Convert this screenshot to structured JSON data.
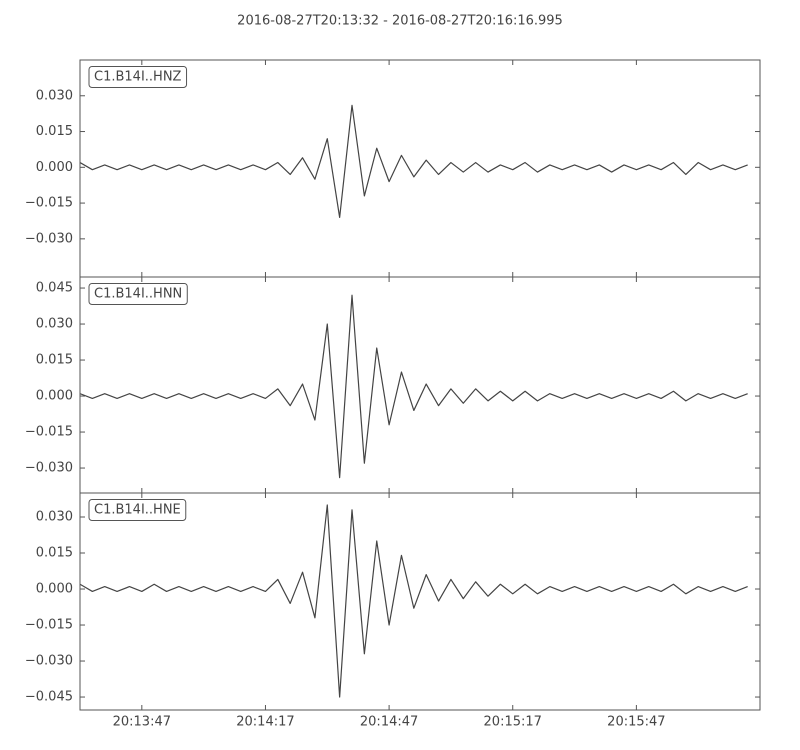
{
  "chart_data": [
    {
      "type": "line",
      "title": "2016-08-27T20:13:32  -  2016-08-27T20:16:16.995",
      "label": "C1.B14I..HNZ",
      "color": "#444444",
      "x": [
        72812,
        72815,
        72818,
        72821,
        72824,
        72827,
        72830,
        72833,
        72836,
        72839,
        72842,
        72845,
        72848,
        72851,
        72854,
        72857,
        72860,
        72863,
        72866,
        72869,
        72872,
        72875,
        72878,
        72881,
        72884,
        72887,
        72890,
        72893,
        72896,
        72899,
        72902,
        72905,
        72908,
        72911,
        72914,
        72917,
        72920,
        72923,
        72926,
        72929,
        72932,
        72935,
        72938,
        72941,
        72944,
        72947,
        72950,
        72953,
        72956,
        72959,
        72962,
        72965,
        72968,
        72971,
        72974
      ],
      "values": [
        0.002,
        -0.001,
        0.001,
        -0.001,
        0.001,
        -0.001,
        0.001,
        -0.001,
        0.001,
        -0.001,
        0.001,
        -0.001,
        0.001,
        -0.001,
        0.001,
        -0.001,
        0.002,
        -0.003,
        0.004,
        -0.005,
        0.012,
        -0.021,
        0.026,
        -0.012,
        0.008,
        -0.006,
        0.005,
        -0.004,
        0.003,
        -0.003,
        0.002,
        -0.002,
        0.002,
        -0.002,
        0.001,
        -0.001,
        0.002,
        -0.002,
        0.001,
        -0.001,
        0.001,
        -0.001,
        0.001,
        -0.002,
        0.001,
        -0.001,
        0.001,
        -0.001,
        0.002,
        -0.003,
        0.002,
        -0.001,
        0.001,
        -0.001,
        0.001
      ],
      "xlim": [
        72812,
        72976.995
      ],
      "ylim": [
        -0.046,
        0.045
      ],
      "yticks": [
        {
          "value": -0.03,
          "label": "−0.030"
        },
        {
          "value": -0.015,
          "label": "−0.015"
        },
        {
          "value": 0,
          "label": "0.000"
        },
        {
          "value": 0.015,
          "label": "0.015"
        },
        {
          "value": 0.03,
          "label": "0.030"
        }
      ],
      "xticks": [
        72827,
        72857,
        72887,
        72917,
        72947
      ]
    },
    {
      "type": "line",
      "label": "C1.B14I..HNN",
      "color": "#444444",
      "x": [
        72812,
        72815,
        72818,
        72821,
        72824,
        72827,
        72830,
        72833,
        72836,
        72839,
        72842,
        72845,
        72848,
        72851,
        72854,
        72857,
        72860,
        72863,
        72866,
        72869,
        72872,
        72875,
        72878,
        72881,
        72884,
        72887,
        72890,
        72893,
        72896,
        72899,
        72902,
        72905,
        72908,
        72911,
        72914,
        72917,
        72920,
        72923,
        72926,
        72929,
        72932,
        72935,
        72938,
        72941,
        72944,
        72947,
        72950,
        72953,
        72956,
        72959,
        72962,
        72965,
        72968,
        72971,
        72974
      ],
      "values": [
        0.001,
        -0.001,
        0.001,
        -0.001,
        0.001,
        -0.001,
        0.001,
        -0.001,
        0.001,
        -0.001,
        0.001,
        -0.001,
        0.001,
        -0.001,
        0.001,
        -0.001,
        0.003,
        -0.004,
        0.005,
        -0.01,
        0.03,
        -0.034,
        0.042,
        -0.028,
        0.02,
        -0.012,
        0.01,
        -0.006,
        0.005,
        -0.004,
        0.003,
        -0.003,
        0.003,
        -0.002,
        0.002,
        -0.002,
        0.002,
        -0.002,
        0.001,
        -0.001,
        0.001,
        -0.001,
        0.001,
        -0.001,
        0.001,
        -0.001,
        0.001,
        -0.001,
        0.002,
        -0.002,
        0.001,
        -0.001,
        0.001,
        -0.001,
        0.001
      ],
      "xlim": [
        72812,
        72976.995
      ],
      "ylim": [
        -0.0404,
        0.0496
      ],
      "yticks": [
        {
          "value": -0.03,
          "label": "−0.030"
        },
        {
          "value": -0.015,
          "label": "−0.015"
        },
        {
          "value": 0,
          "label": "0.000"
        },
        {
          "value": 0.015,
          "label": "0.015"
        },
        {
          "value": 0.03,
          "label": "0.030"
        },
        {
          "value": 0.045,
          "label": "0.045"
        }
      ],
      "xticks": [
        72827,
        72857,
        72887,
        72917,
        72947
      ]
    },
    {
      "type": "line",
      "label": "C1.B14I..HNE",
      "color": "#444444",
      "x": [
        72812,
        72815,
        72818,
        72821,
        72824,
        72827,
        72830,
        72833,
        72836,
        72839,
        72842,
        72845,
        72848,
        72851,
        72854,
        72857,
        72860,
        72863,
        72866,
        72869,
        72872,
        72875,
        72878,
        72881,
        72884,
        72887,
        72890,
        72893,
        72896,
        72899,
        72902,
        72905,
        72908,
        72911,
        72914,
        72917,
        72920,
        72923,
        72926,
        72929,
        72932,
        72935,
        72938,
        72941,
        72944,
        72947,
        72950,
        72953,
        72956,
        72959,
        72962,
        72965,
        72968,
        72971,
        72974
      ],
      "values": [
        0.002,
        -0.001,
        0.001,
        -0.001,
        0.001,
        -0.001,
        0.002,
        -0.001,
        0.001,
        -0.001,
        0.001,
        -0.001,
        0.001,
        -0.001,
        0.001,
        -0.001,
        0.004,
        -0.006,
        0.007,
        -0.012,
        0.035,
        -0.045,
        0.033,
        -0.027,
        0.02,
        -0.015,
        0.014,
        -0.008,
        0.006,
        -0.005,
        0.004,
        -0.004,
        0.003,
        -0.003,
        0.002,
        -0.002,
        0.002,
        -0.002,
        0.001,
        -0.001,
        0.001,
        -0.001,
        0.001,
        -0.001,
        0.001,
        -0.001,
        0.001,
        -0.001,
        0.002,
        -0.002,
        0.001,
        -0.001,
        0.001,
        -0.001,
        0.001
      ],
      "xlim": [
        72812,
        72976.995
      ],
      "ylim": [
        -0.0504,
        0.04
      ],
      "yticks": [
        {
          "value": -0.045,
          "label": "−0.045"
        },
        {
          "value": -0.03,
          "label": "−0.030"
        },
        {
          "value": -0.015,
          "label": "−0.015"
        },
        {
          "value": 0,
          "label": "0.000"
        },
        {
          "value": 0.015,
          "label": "0.015"
        },
        {
          "value": 0.03,
          "label": "0.030"
        }
      ],
      "xticks": [
        {
          "value": 72827,
          "label": "20:13:47"
        },
        {
          "value": 72857,
          "label": "20:14:17"
        },
        {
          "value": 72887,
          "label": "20:14:47"
        },
        {
          "value": 72917,
          "label": "20:15:17"
        },
        {
          "value": 72947,
          "label": "20:15:47"
        }
      ]
    }
  ]
}
